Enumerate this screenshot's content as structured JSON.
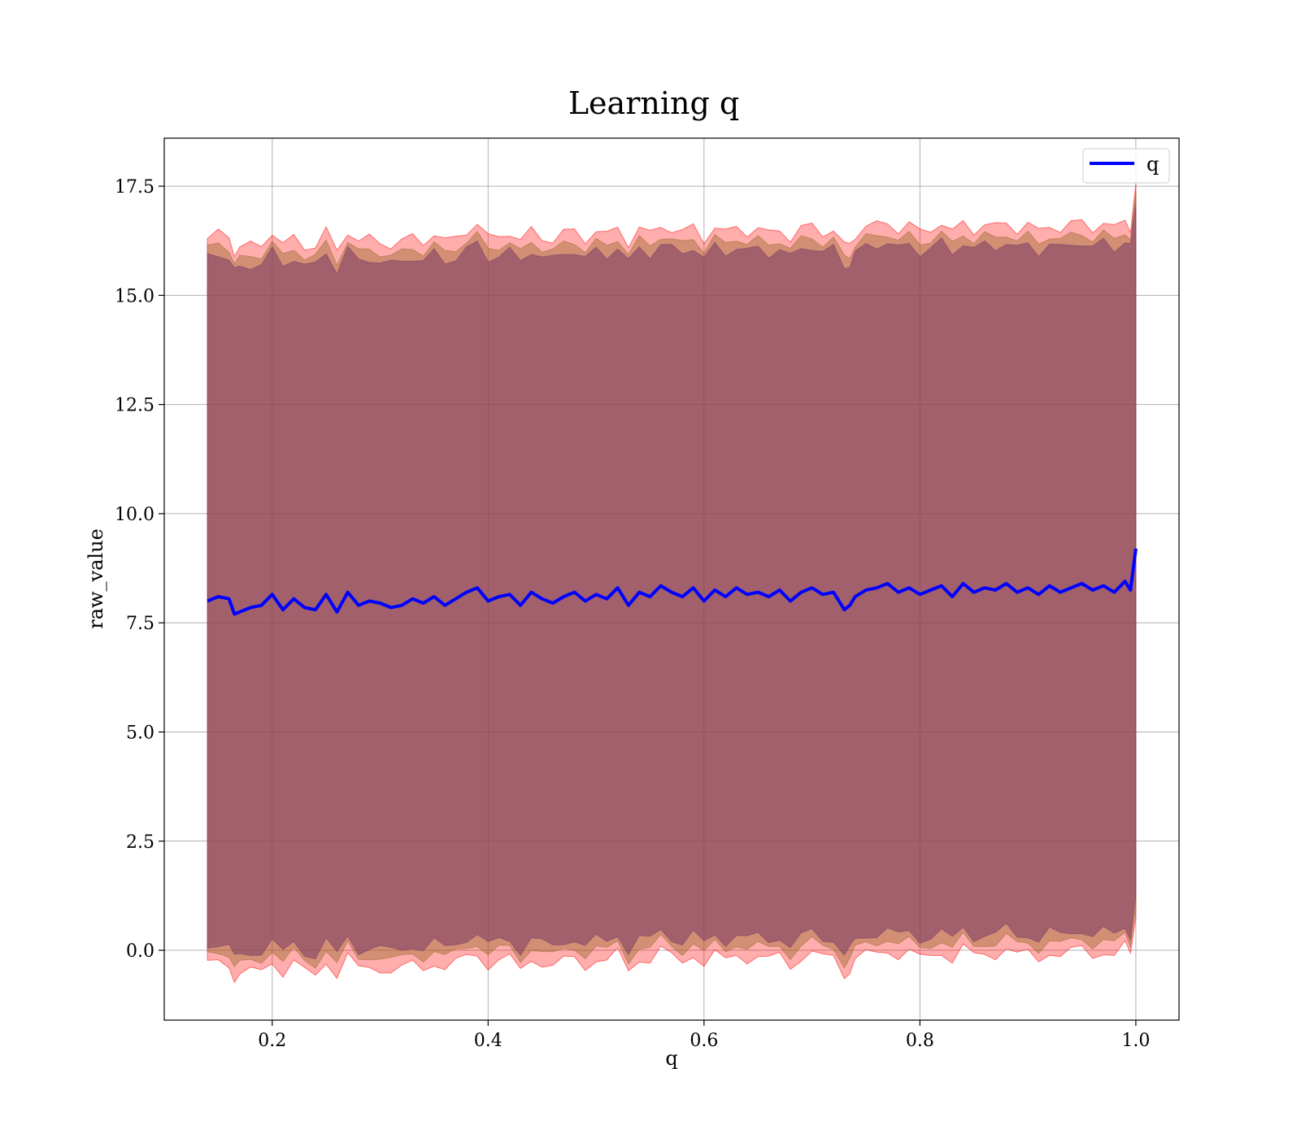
{
  "chart_data": {
    "type": "area",
    "title": "Learning q",
    "xlabel": "q",
    "ylabel": "raw_value",
    "xlim": [
      0.1,
      1.04
    ],
    "ylim": [
      -1.6,
      18.6
    ],
    "xticks": [
      0.2,
      0.4,
      0.6,
      0.8,
      1.0
    ],
    "xtick_labels": [
      "0.2",
      "0.4",
      "0.6",
      "0.8",
      "1.0"
    ],
    "yticks": [
      0.0,
      2.5,
      5.0,
      7.5,
      10.0,
      12.5,
      15.0,
      17.5
    ],
    "ytick_labels": [
      "0.0",
      "2.5",
      "5.0",
      "7.5",
      "10.0",
      "12.5",
      "15.0",
      "17.5"
    ],
    "grid": true,
    "legend": {
      "placement": "top-right",
      "entries": [
        {
          "label": "q",
          "color": "#0000ff"
        }
      ]
    },
    "series": [
      {
        "name": "q",
        "color": "#0000ff",
        "x": [
          0.14,
          0.15,
          0.16,
          0.165,
          0.17,
          0.18,
          0.19,
          0.2,
          0.21,
          0.22,
          0.23,
          0.24,
          0.25,
          0.26,
          0.27,
          0.28,
          0.29,
          0.3,
          0.31,
          0.32,
          0.33,
          0.34,
          0.35,
          0.36,
          0.37,
          0.38,
          0.39,
          0.4,
          0.41,
          0.42,
          0.43,
          0.44,
          0.45,
          0.46,
          0.47,
          0.48,
          0.49,
          0.5,
          0.51,
          0.52,
          0.53,
          0.54,
          0.55,
          0.56,
          0.57,
          0.58,
          0.59,
          0.6,
          0.61,
          0.62,
          0.63,
          0.64,
          0.65,
          0.66,
          0.67,
          0.68,
          0.69,
          0.7,
          0.71,
          0.72,
          0.73,
          0.735,
          0.74,
          0.75,
          0.76,
          0.77,
          0.78,
          0.79,
          0.8,
          0.81,
          0.82,
          0.83,
          0.84,
          0.85,
          0.86,
          0.87,
          0.88,
          0.89,
          0.9,
          0.91,
          0.92,
          0.93,
          0.94,
          0.95,
          0.96,
          0.97,
          0.98,
          0.99,
          0.995,
          1.0
        ],
        "y": [
          8.0,
          8.1,
          8.05,
          7.7,
          7.75,
          7.85,
          7.9,
          8.15,
          7.8,
          8.05,
          7.85,
          7.8,
          8.15,
          7.75,
          8.2,
          7.9,
          8.0,
          7.95,
          7.85,
          7.9,
          8.05,
          7.95,
          8.1,
          7.9,
          8.05,
          8.2,
          8.3,
          8.0,
          8.1,
          8.15,
          7.9,
          8.2,
          8.05,
          7.95,
          8.1,
          8.2,
          8.0,
          8.15,
          8.05,
          8.3,
          7.9,
          8.2,
          8.1,
          8.35,
          8.2,
          8.1,
          8.3,
          8.0,
          8.25,
          8.1,
          8.3,
          8.15,
          8.2,
          8.1,
          8.25,
          8.0,
          8.2,
          8.3,
          8.15,
          8.2,
          7.8,
          7.9,
          8.1,
          8.25,
          8.3,
          8.4,
          8.2,
          8.3,
          8.15,
          8.25,
          8.35,
          8.1,
          8.4,
          8.2,
          8.3,
          8.25,
          8.4,
          8.2,
          8.3,
          8.15,
          8.35,
          8.2,
          8.3,
          8.4,
          8.25,
          8.35,
          8.2,
          8.45,
          8.25,
          9.2
        ]
      }
    ],
    "bands": [
      {
        "color": "#ff0000",
        "opacity": 0.32,
        "offset_low": 8.35,
        "offset_high": 8.3
      },
      {
        "color": "#9e6a2e",
        "opacity": 0.45,
        "offset_low": 8.1,
        "offset_high": 8.05
      },
      {
        "color": "#7a3a66",
        "opacity": 0.55,
        "offset_low": 7.9,
        "offset_high": 7.85
      }
    ]
  }
}
